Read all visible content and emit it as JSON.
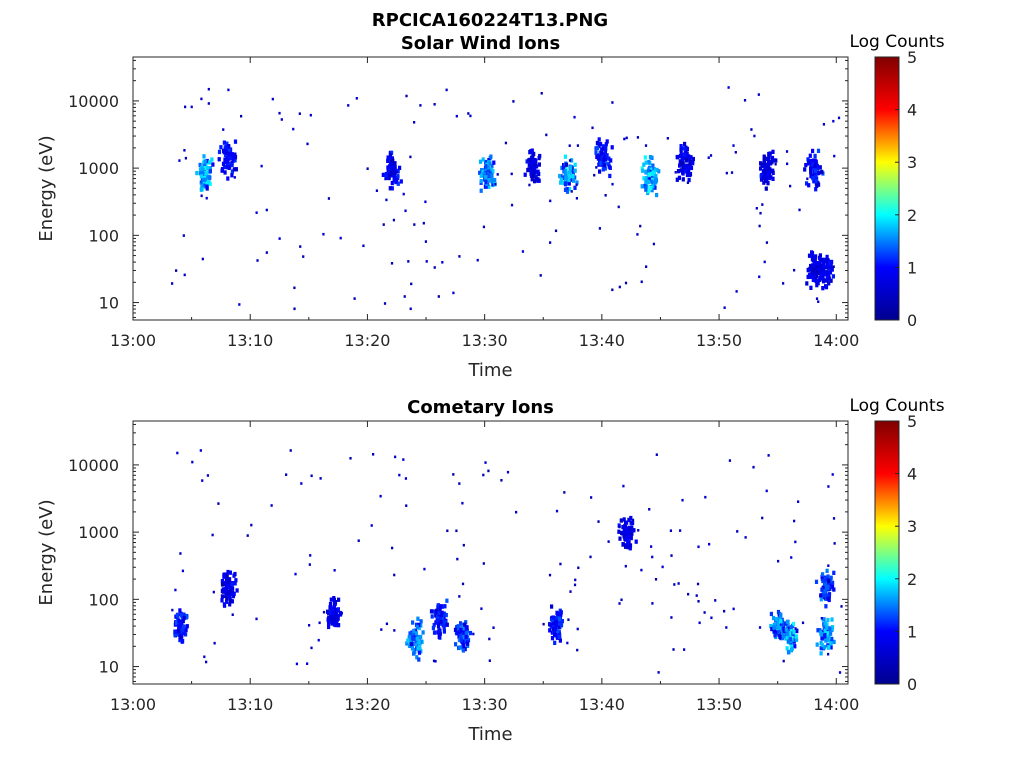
{
  "figure": {
    "title": "RPCICA160224T13.PNG"
  },
  "colorbar": {
    "label": "Log Counts",
    "range": [
      0,
      5
    ],
    "ticks": [
      "0",
      "1",
      "2",
      "3",
      "4",
      "5"
    ],
    "colormap": "jet",
    "stops": [
      "#00008f",
      "#0000ff",
      "#00ffff",
      "#ffff00",
      "#ff0000",
      "#800000"
    ]
  },
  "chart_data": [
    {
      "type": "heatmap",
      "title": "Solar Wind Ions",
      "xlabel": "Time",
      "ylabel": "Energy (eV)",
      "y_scale": "log",
      "xlim": [
        "13:00",
        "14:01"
      ],
      "ylim": [
        5.5,
        45000
      ],
      "xticks": [
        "13:00",
        "13:10",
        "13:20",
        "13:30",
        "13:40",
        "13:50",
        "14:00"
      ],
      "yticks": [
        "10",
        "100",
        "1000",
        "10000"
      ],
      "grid": false,
      "clusters": [
        {
          "t": "13:06",
          "energy_eV": 800,
          "log_counts": 2.0
        },
        {
          "t": "13:08",
          "energy_eV": 1500,
          "log_counts": 1.2
        },
        {
          "t": "13:22",
          "energy_eV": 900,
          "log_counts": 1.1
        },
        {
          "t": "13:30",
          "energy_eV": 800,
          "log_counts": 1.8
        },
        {
          "t": "13:34",
          "energy_eV": 1000,
          "log_counts": 1.0
        },
        {
          "t": "13:37",
          "energy_eV": 800,
          "log_counts": 2.0
        },
        {
          "t": "13:40",
          "energy_eV": 1500,
          "log_counts": 1.3
        },
        {
          "t": "13:44",
          "energy_eV": 800,
          "log_counts": 2.0
        },
        {
          "t": "13:47",
          "energy_eV": 1200,
          "log_counts": 1.0
        },
        {
          "t": "13:54",
          "energy_eV": 1000,
          "log_counts": 1.0
        },
        {
          "t": "13:58",
          "energy_eV": 900,
          "log_counts": 1.2
        },
        {
          "t": "13:58",
          "energy_eV": 30,
          "log_counts": 1.0
        },
        {
          "t": "13:59",
          "energy_eV": 30,
          "log_counts": 1.0
        }
      ]
    },
    {
      "type": "heatmap",
      "title": "Cometary Ions",
      "xlabel": "Time",
      "ylabel": "Energy (eV)",
      "y_scale": "log",
      "xlim": [
        "13:00",
        "14:01"
      ],
      "ylim": [
        5.5,
        45000
      ],
      "xticks": [
        "13:00",
        "13:10",
        "13:20",
        "13:30",
        "13:40",
        "13:50",
        "14:00"
      ],
      "yticks": [
        "10",
        "100",
        "1000",
        "10000"
      ],
      "grid": false,
      "clusters": [
        {
          "t": "13:04",
          "energy_eV": 40,
          "log_counts": 1.3
        },
        {
          "t": "13:08",
          "energy_eV": 150,
          "log_counts": 1.0
        },
        {
          "t": "13:17",
          "energy_eV": 60,
          "log_counts": 1.0
        },
        {
          "t": "13:24",
          "energy_eV": 25,
          "log_counts": 1.8
        },
        {
          "t": "13:26",
          "energy_eV": 50,
          "log_counts": 1.3
        },
        {
          "t": "13:28",
          "energy_eV": 30,
          "log_counts": 1.5
        },
        {
          "t": "13:36",
          "energy_eV": 40,
          "log_counts": 1.3
        },
        {
          "t": "13:42",
          "energy_eV": 1000,
          "log_counts": 1.0
        },
        {
          "t": "13:55",
          "energy_eV": 40,
          "log_counts": 1.8
        },
        {
          "t": "13:56",
          "energy_eV": 30,
          "log_counts": 2.0
        },
        {
          "t": "13:59",
          "energy_eV": 30,
          "log_counts": 2.0
        },
        {
          "t": "13:59",
          "energy_eV": 150,
          "log_counts": 1.5
        }
      ]
    }
  ]
}
